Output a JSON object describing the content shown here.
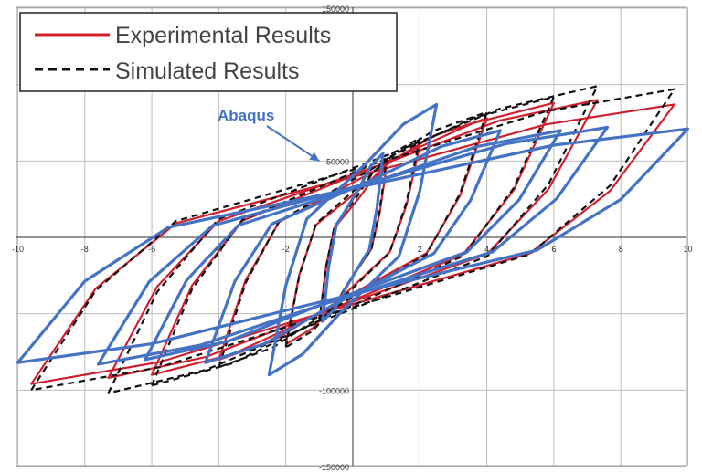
{
  "chart_data": {
    "type": "line",
    "title": "",
    "xlabel": "",
    "ylabel": "",
    "xlim": [
      -10,
      10
    ],
    "ylim": [
      -150000,
      150000
    ],
    "x_ticks": [
      "-10",
      "-8",
      "-6",
      "-4",
      "-2",
      "2",
      "4",
      "6",
      "8",
      "10"
    ],
    "y_ticks": [
      "150000",
      "100000",
      "50000",
      "-100000",
      "-150000"
    ],
    "x_tick_values": [
      -10,
      -8,
      -6,
      -4,
      -2,
      2,
      4,
      6,
      8,
      10
    ],
    "y_tick_values": [
      150000,
      100000,
      50000,
      -100000,
      -150000
    ],
    "grid": true,
    "legend": {
      "placement": "top-left",
      "entries": [
        "Experimental Results",
        "Simulated Results"
      ]
    },
    "annotation": {
      "text": "Abaqus",
      "points_to": [
        -1,
        50000
      ]
    },
    "colors": {
      "experimental": "#D0202E",
      "simulated": "#111111",
      "abaqus": "#4472C4"
    },
    "series": [
      {
        "name": "Experimental Results",
        "style": "solid",
        "loops": [
          {
            "amplitude": 1.0,
            "peak_pos": 45000,
            "peak_neg": -55000
          },
          {
            "amplitude": 2.0,
            "peak_pos": 60000,
            "peak_neg": -70000
          },
          {
            "amplitude": 4.0,
            "peak_pos": 78000,
            "peak_neg": -80000
          },
          {
            "amplitude": 6.0,
            "peak_pos": 88000,
            "peak_neg": -90000
          },
          {
            "amplitude": 7.3,
            "peak_pos": 90000,
            "peak_neg": -92000
          },
          {
            "amplitude": 9.6,
            "peak_pos": 87000,
            "peak_neg": -96000
          }
        ]
      },
      {
        "name": "Simulated Results",
        "style": "dashed",
        "loops": [
          {
            "amplitude": 1.0,
            "peak_pos": 50000,
            "peak_neg": -55000
          },
          {
            "amplitude": 2.0,
            "peak_pos": 65000,
            "peak_neg": -72000
          },
          {
            "amplitude": 4.0,
            "peak_pos": 82000,
            "peak_neg": -85000
          },
          {
            "amplitude": 6.0,
            "peak_pos": 92000,
            "peak_neg": -97000
          },
          {
            "amplitude": 7.3,
            "peak_pos": 99000,
            "peak_neg": -102000
          },
          {
            "amplitude": 9.6,
            "peak_pos": 97000,
            "peak_neg": -100000
          }
        ]
      },
      {
        "style": "solid-thick",
        "loops": [
          {
            "amplitude": 0.9,
            "peak_pos": 55000,
            "peak_neg": -55000
          },
          {
            "amplitude": 2.5,
            "peak_pos": 87000,
            "peak_neg": -90000
          },
          {
            "amplitude": 4.4,
            "peak_pos": 70000,
            "peak_neg": -82000
          },
          {
            "amplitude": 6.2,
            "peak_pos": 70000,
            "peak_neg": -80000
          },
          {
            "amplitude": 7.6,
            "peak_pos": 72000,
            "peak_neg": -83000
          },
          {
            "amplitude": 10.0,
            "peak_pos": 71000,
            "peak_neg": -82000
          }
        ]
      }
    ]
  }
}
